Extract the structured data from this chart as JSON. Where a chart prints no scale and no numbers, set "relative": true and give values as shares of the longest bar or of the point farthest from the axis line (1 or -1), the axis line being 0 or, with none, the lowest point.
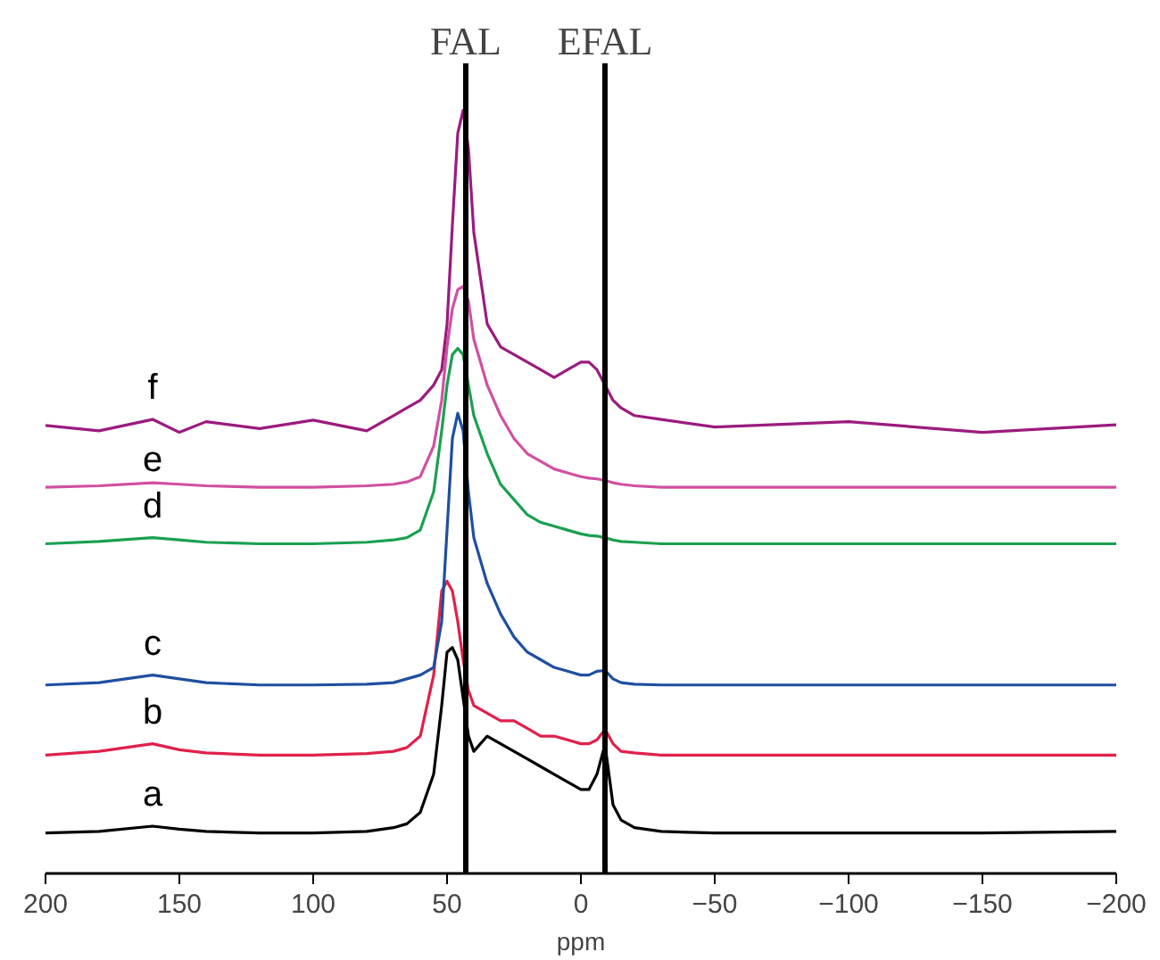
{
  "chart_data": {
    "type": "line",
    "relative": true,
    "xlabel": "ppm",
    "xlim": [
      200,
      -200
    ],
    "xticks": [
      200,
      150,
      100,
      50,
      0,
      -50,
      -100,
      -150,
      -200
    ],
    "tick_labels": "x",
    "grid": false,
    "marker": "none",
    "line_style": "solid",
    "x": [
      200,
      180,
      160,
      150,
      140,
      120,
      100,
      80,
      70,
      65,
      60,
      55,
      52,
      50,
      48,
      46,
      44,
      42,
      40,
      35,
      30,
      25,
      20,
      15,
      10,
      5,
      0,
      -3,
      -6,
      -9,
      -12,
      -15,
      -20,
      -30,
      -50,
      -100,
      -150,
      -200
    ],
    "series": [
      {
        "name": "a",
        "color": "#000000",
        "values": [
          0.053,
          0.055,
          0.062,
          0.058,
          0.055,
          0.053,
          0.053,
          0.055,
          0.06,
          0.065,
          0.08,
          0.13,
          0.22,
          0.29,
          0.296,
          0.28,
          0.23,
          0.18,
          0.16,
          0.18,
          0.17,
          0.16,
          0.15,
          0.14,
          0.13,
          0.12,
          0.11,
          0.11,
          0.13,
          0.169,
          0.09,
          0.07,
          0.06,
          0.055,
          0.053,
          0.053,
          0.053,
          0.055
        ]
      },
      {
        "name": "b",
        "color": "#e0204a",
        "values": [
          0.155,
          0.16,
          0.17,
          0.162,
          0.158,
          0.155,
          0.155,
          0.157,
          0.16,
          0.165,
          0.18,
          0.26,
          0.37,
          0.383,
          0.37,
          0.33,
          0.28,
          0.24,
          0.22,
          0.21,
          0.2,
          0.2,
          0.19,
          0.18,
          0.18,
          0.175,
          0.17,
          0.17,
          0.175,
          0.189,
          0.17,
          0.16,
          0.158,
          0.155,
          0.155,
          0.155,
          0.155,
          0.155
        ]
      },
      {
        "name": "c",
        "color": "#1f4fa0",
        "values": [
          0.247,
          0.25,
          0.26,
          0.255,
          0.25,
          0.247,
          0.247,
          0.248,
          0.25,
          0.255,
          0.26,
          0.27,
          0.33,
          0.45,
          0.57,
          0.603,
          0.58,
          0.5,
          0.44,
          0.38,
          0.34,
          0.31,
          0.29,
          0.28,
          0.27,
          0.265,
          0.26,
          0.26,
          0.265,
          0.266,
          0.255,
          0.25,
          0.248,
          0.247,
          0.247,
          0.247,
          0.247,
          0.247
        ]
      },
      {
        "name": "d",
        "color": "#1aa050",
        "values": [
          0.432,
          0.435,
          0.44,
          0.437,
          0.434,
          0.432,
          0.432,
          0.434,
          0.437,
          0.44,
          0.45,
          0.5,
          0.58,
          0.64,
          0.68,
          0.688,
          0.68,
          0.64,
          0.6,
          0.55,
          0.51,
          0.49,
          0.47,
          0.46,
          0.455,
          0.45,
          0.445,
          0.443,
          0.442,
          0.44,
          0.437,
          0.435,
          0.434,
          0.432,
          0.432,
          0.432,
          0.432,
          0.432
        ]
      },
      {
        "name": "e",
        "color": "#d050a0",
        "values": [
          0.506,
          0.508,
          0.512,
          0.51,
          0.508,
          0.506,
          0.506,
          0.508,
          0.51,
          0.513,
          0.52,
          0.56,
          0.62,
          0.69,
          0.74,
          0.765,
          0.769,
          0.75,
          0.7,
          0.64,
          0.6,
          0.57,
          0.55,
          0.54,
          0.53,
          0.525,
          0.52,
          0.518,
          0.517,
          0.515,
          0.512,
          0.51,
          0.508,
          0.506,
          0.506,
          0.506,
          0.506,
          0.506
        ]
      },
      {
        "name": "f",
        "color": "#9b1b7e",
        "values": [
          0.587,
          0.58,
          0.595,
          0.578,
          0.592,
          0.583,
          0.594,
          0.58,
          0.6,
          0.61,
          0.62,
          0.64,
          0.66,
          0.72,
          0.85,
          0.97,
          1.0,
          0.95,
          0.84,
          0.72,
          0.69,
          0.68,
          0.67,
          0.66,
          0.65,
          0.66,
          0.67,
          0.67,
          0.66,
          0.64,
          0.62,
          0.61,
          0.6,
          0.595,
          0.585,
          0.592,
          0.578,
          0.588
        ]
      }
    ],
    "ref_lines": [
      {
        "axis": "x",
        "value": 43,
        "label": "FAL",
        "color": "#000000"
      },
      {
        "axis": "x",
        "value": -9,
        "label": "EFAL",
        "color": "#000000"
      }
    ]
  }
}
